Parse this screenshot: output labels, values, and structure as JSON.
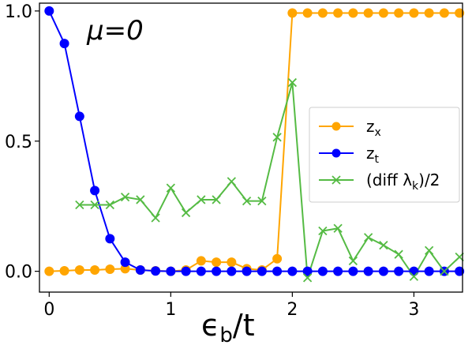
{
  "chart_data": {
    "type": "line",
    "annotation": "μ=0",
    "xlabel": "ϵb/t",
    "xlim": [
      -0.08,
      3.4
    ],
    "ylim": [
      -0.08,
      1.03
    ],
    "xticks": [
      0,
      1,
      2,
      3
    ],
    "xtick_labels": [
      "0",
      "1",
      "2",
      "3"
    ],
    "yticks": [
      0,
      0.5,
      1
    ],
    "ytick_labels": [
      "0.0",
      "0.5",
      "1.0"
    ],
    "grid": false,
    "legend_position": "right",
    "series": [
      {
        "name": "z_x",
        "legend_main": "z",
        "legend_sub": "x",
        "color": "#ffa500",
        "marker": "circle",
        "x": [
          0,
          0.125,
          0.25,
          0.375,
          0.5,
          0.625,
          0.75,
          0.875,
          1.0,
          1.125,
          1.25,
          1.375,
          1.5,
          1.625,
          1.75,
          1.875,
          2.0,
          2.125,
          2.25,
          2.375,
          2.5,
          2.625,
          2.75,
          2.875,
          3.0,
          3.125,
          3.25,
          3.375
        ],
        "y": [
          0.0,
          0.002,
          0.005,
          0.005,
          0.008,
          0.01,
          0.005,
          0.002,
          0.0,
          0.005,
          0.04,
          0.035,
          0.035,
          0.01,
          0.005,
          0.048,
          0.992,
          0.992,
          0.992,
          0.992,
          0.992,
          0.992,
          0.992,
          0.992,
          0.992,
          0.992,
          0.992,
          0.992
        ]
      },
      {
        "name": "z_t",
        "legend_main": "z",
        "legend_sub": "t",
        "color": "#0000ff",
        "marker": "circle",
        "x": [
          0,
          0.125,
          0.25,
          0.375,
          0.5,
          0.625,
          0.75,
          0.875,
          1.0,
          1.125,
          1.25,
          1.375,
          1.5,
          1.625,
          1.75,
          1.875,
          2.0,
          2.125,
          2.25,
          2.375,
          2.5,
          2.625,
          2.75,
          2.875,
          3.0,
          3.125,
          3.25,
          3.375
        ],
        "y": [
          1.0,
          0.875,
          0.595,
          0.31,
          0.125,
          0.035,
          0.005,
          0.001,
          0.0,
          0.0,
          0.0,
          0.0,
          0.0,
          0.0,
          0.0,
          0.0,
          0.0,
          0.0,
          0.0,
          0.0,
          0.0,
          0.0,
          0.0,
          0.0,
          0.0,
          0.0,
          0.0,
          0.0
        ]
      },
      {
        "name": "(diff λk)/2",
        "legend_main": "(diff λ",
        "legend_sub": "k",
        "legend_tail": ")/2",
        "color": "#55bb44",
        "marker": "x",
        "x": [
          0.25,
          0.375,
          0.5,
          0.625,
          0.75,
          0.875,
          1.0,
          1.125,
          1.25,
          1.375,
          1.5,
          1.625,
          1.75,
          1.875,
          2.0,
          2.125,
          2.25,
          2.375,
          2.5,
          2.625,
          2.75,
          2.875,
          3.0,
          3.125,
          3.25,
          3.375
        ],
        "y": [
          0.255,
          0.255,
          0.255,
          0.285,
          0.275,
          0.205,
          0.32,
          0.225,
          0.275,
          0.275,
          0.345,
          0.27,
          0.27,
          0.515,
          0.725,
          -0.025,
          0.155,
          0.165,
          0.04,
          0.13,
          0.1,
          0.065,
          -0.02,
          0.08,
          0.0,
          0.055
        ]
      }
    ]
  }
}
